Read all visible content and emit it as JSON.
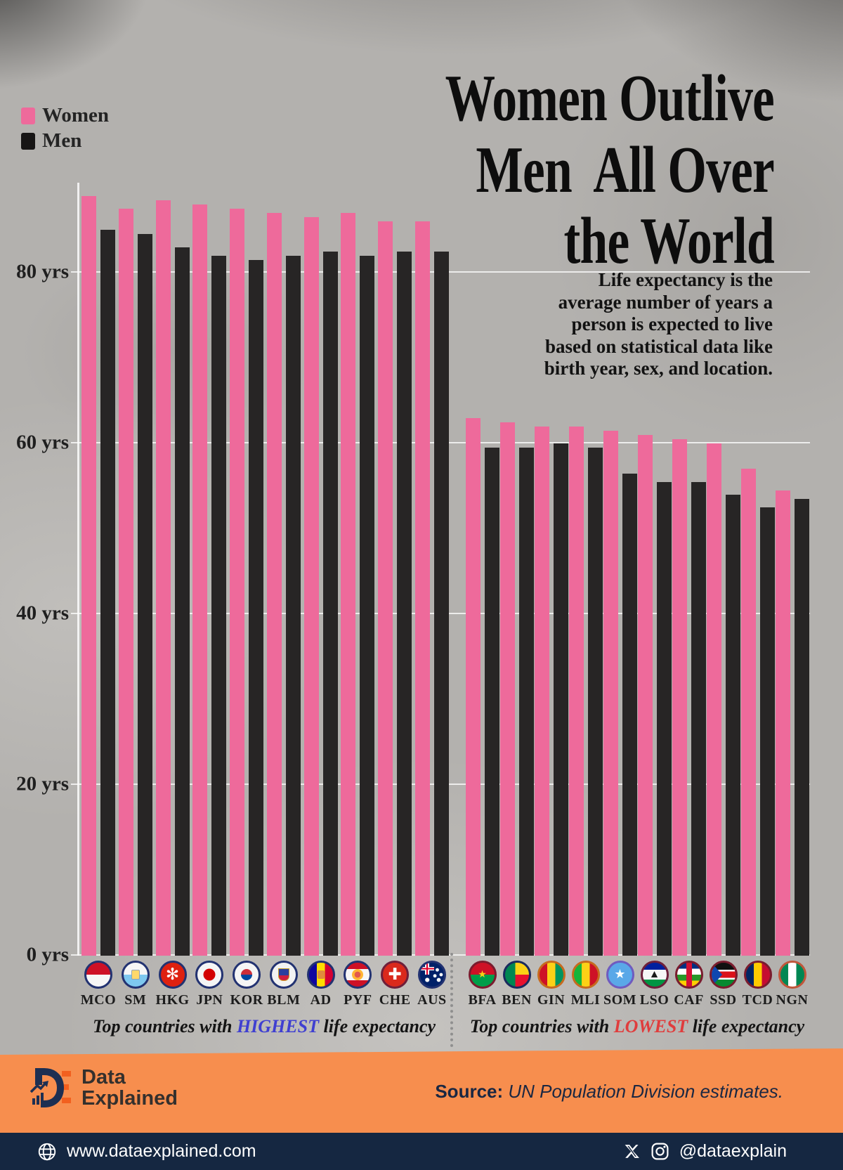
{
  "legend": {
    "women_label": "Women",
    "men_label": "Men"
  },
  "title_lines": [
    "Women Outlive",
    "Men  All Over",
    "the World"
  ],
  "subtitle_lines": [
    "Life expectancy is the",
    "average number of years a",
    "person is expected to live",
    "based on statistical data like",
    "birth year, sex, and location."
  ],
  "y_axis_ticks": [
    {
      "label": "80 yrs",
      "value": 80
    },
    {
      "label": "60 yrs",
      "value": 60
    },
    {
      "label": "40 yrs",
      "value": 40
    },
    {
      "label": "20 yrs",
      "value": 20
    },
    {
      "label": "0 yrs",
      "value": 0
    }
  ],
  "chart_data": {
    "type": "bar",
    "title": "Women Outlive Men All Over the World",
    "unit": "years",
    "ylim": [
      0,
      90
    ],
    "grid": true,
    "legend_position": "top-left",
    "series_names": [
      "Women",
      "Men"
    ],
    "colors": {
      "women": "#ee6a9b",
      "men": "#272525"
    },
    "groups": [
      {
        "caption": {
          "prefix": "Top countries with ",
          "highlight": "HIGHEST",
          "suffix": " life expectancy",
          "highlight_color": "#3f3fd1"
        },
        "countries": [
          {
            "code": "MCO",
            "women": 89,
            "men": 85
          },
          {
            "code": "SM",
            "women": 87.5,
            "men": 84.5
          },
          {
            "code": "HKG",
            "women": 88.5,
            "men": 83
          },
          {
            "code": "JPN",
            "women": 88,
            "men": 82
          },
          {
            "code": "KOR",
            "women": 87.5,
            "men": 81.5
          },
          {
            "code": "BLM",
            "women": 87,
            "men": 82
          },
          {
            "code": "AD",
            "women": 86.5,
            "men": 82.5
          },
          {
            "code": "PYF",
            "women": 87,
            "men": 82
          },
          {
            "code": "CHE",
            "women": 86,
            "men": 82.5
          },
          {
            "code": "AUS",
            "women": 86,
            "men": 82.5
          }
        ]
      },
      {
        "caption": {
          "prefix": "Top countries with ",
          "highlight": "LOWEST",
          "suffix": " life expectancy",
          "highlight_color": "#e03c3c"
        },
        "countries": [
          {
            "code": "BFA",
            "women": 63,
            "men": 59.5
          },
          {
            "code": "BEN",
            "women": 62.5,
            "men": 59.5
          },
          {
            "code": "GIN",
            "women": 62,
            "men": 60
          },
          {
            "code": "MLI",
            "women": 62,
            "men": 59.5
          },
          {
            "code": "SOM",
            "women": 61.5,
            "men": 56.5
          },
          {
            "code": "LSO",
            "women": 61,
            "men": 55.5
          },
          {
            "code": "CAF",
            "women": 60.5,
            "men": 55.5
          },
          {
            "code": "SSD",
            "women": 60,
            "men": 54
          },
          {
            "code": "TCD",
            "women": 57,
            "men": 52.5
          },
          {
            "code": "NGN",
            "women": 54.5,
            "men": 53.5
          }
        ]
      }
    ]
  },
  "footer": {
    "brand_line1": "Data",
    "brand_line2": "Explained",
    "source_label": "Source:",
    "source_text": " UN Population Division estimates."
  },
  "bottom_bar": {
    "website": "www.dataexplained.com",
    "social_handle": "@dataexplain"
  }
}
